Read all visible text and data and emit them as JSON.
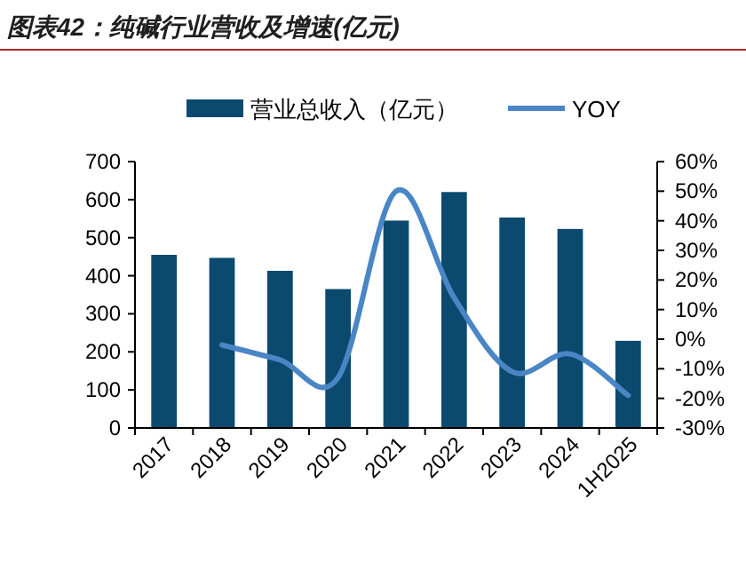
{
  "chart_data": {
    "type": "bar",
    "title": "图表42：纯碱行业营收及增速(亿元)",
    "categories": [
      "2017",
      "2018",
      "2019",
      "2020",
      "2021",
      "2022",
      "2023",
      "2024",
      "1H2025"
    ],
    "series": [
      {
        "name": "营业总收入（亿元）",
        "color": "#0b4a6e",
        "values": [
          455,
          447,
          413,
          365,
          545,
          620,
          553,
          523,
          229
        ]
      },
      {
        "name": "YOY",
        "type": "line",
        "axis": "y2",
        "color": "#4a86c5",
        "values": [
          null,
          -2,
          -7,
          -13,
          50,
          14,
          -11,
          -5,
          -19
        ]
      }
    ],
    "ylim": [
      0,
      700
    ],
    "yticks": [
      0,
      100,
      200,
      300,
      400,
      500,
      600,
      700
    ],
    "y2lim": [
      -30,
      60
    ],
    "y2ticks": [
      {
        "value": -30,
        "label": "-30%"
      },
      {
        "value": -20,
        "label": "-20%"
      },
      {
        "value": -10,
        "label": "-10%"
      },
      {
        "value": 0,
        "label": "0%"
      },
      {
        "value": 10,
        "label": "10%"
      },
      {
        "value": 20,
        "label": "20%"
      },
      {
        "value": 30,
        "label": "30%"
      },
      {
        "value": 40,
        "label": "40%"
      },
      {
        "value": 50,
        "label": "50%"
      },
      {
        "value": 60,
        "label": "60%"
      }
    ],
    "legend": "top",
    "grid": false,
    "marker": "none",
    "line_style": "solid"
  }
}
